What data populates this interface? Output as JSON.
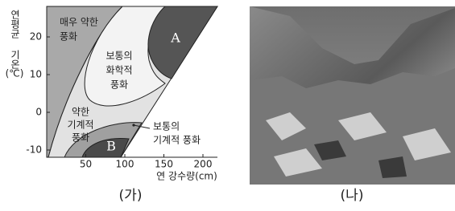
{
  "figure_a": {
    "y_axis_label": "연평균 기온",
    "y_axis_unit": "(℃)",
    "x_axis_label": "연 강수량(cm)",
    "yticks": [
      20,
      10,
      0,
      -10
    ],
    "xticks": [
      50,
      100,
      150,
      200
    ],
    "regions": {
      "very_weak": [
        "매우 약한",
        "풍화"
      ],
      "chemical": [
        "보통의",
        "화학적",
        "풍화"
      ],
      "a": "A",
      "weak_mechanical": [
        "약한",
        "기계적",
        "풍화"
      ],
      "mechanical": [
        "보통의",
        "기계적 풍화"
      ],
      "b": "B"
    },
    "caption": "(가)"
  },
  "figure_b": {
    "caption": "(나)"
  }
}
